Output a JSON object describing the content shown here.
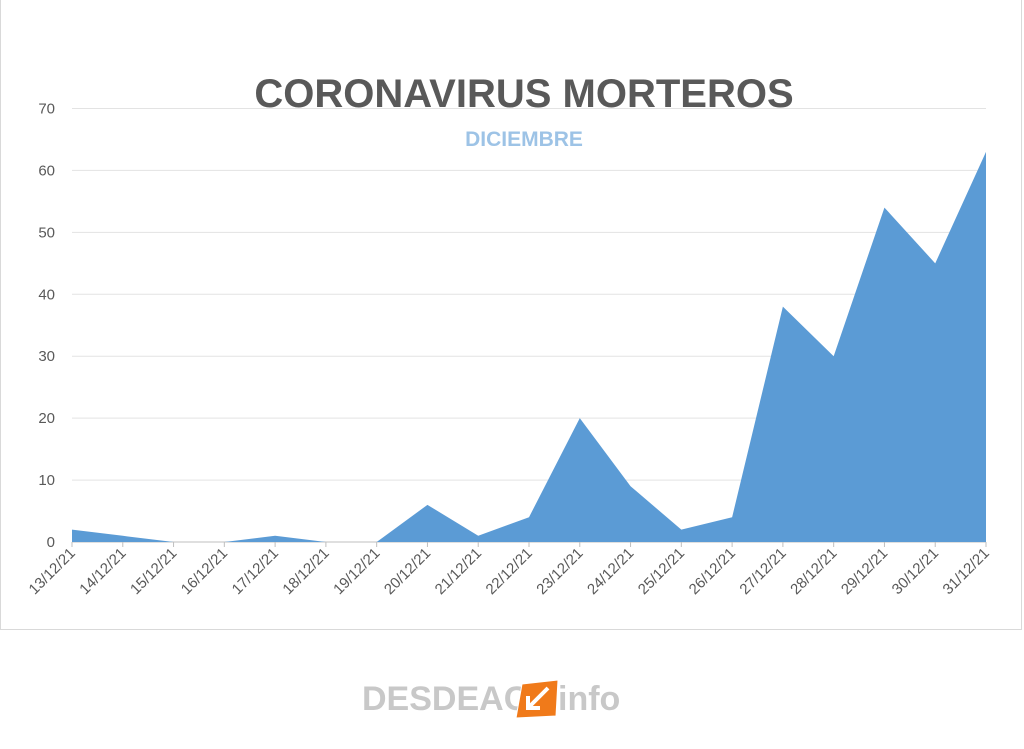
{
  "chart_data": {
    "type": "area",
    "title": "CORONAVIRUS MORTEROS",
    "subtitle": "DICIEMBRE",
    "categories": [
      "13/12/21",
      "14/12/21",
      "15/12/21",
      "16/12/21",
      "17/12/21",
      "18/12/21",
      "19/12/21",
      "20/12/21",
      "21/12/21",
      "22/12/21",
      "23/12/21",
      "24/12/21",
      "25/12/21",
      "26/12/21",
      "27/12/21",
      "28/12/21",
      "29/12/21",
      "30/12/21",
      "31/12/21"
    ],
    "values": [
      2,
      1,
      0,
      0,
      1,
      0,
      0,
      6,
      1,
      4,
      20,
      9,
      2,
      4,
      38,
      30,
      54,
      45,
      63
    ],
    "ylim": [
      0,
      70
    ],
    "yticks": [
      0,
      10,
      20,
      30,
      40,
      50,
      60,
      70
    ],
    "grid": true,
    "legend": "none",
    "color": "#5b9bd5"
  },
  "watermark": {
    "text": "DESDEACA",
    "suffix": "info"
  }
}
